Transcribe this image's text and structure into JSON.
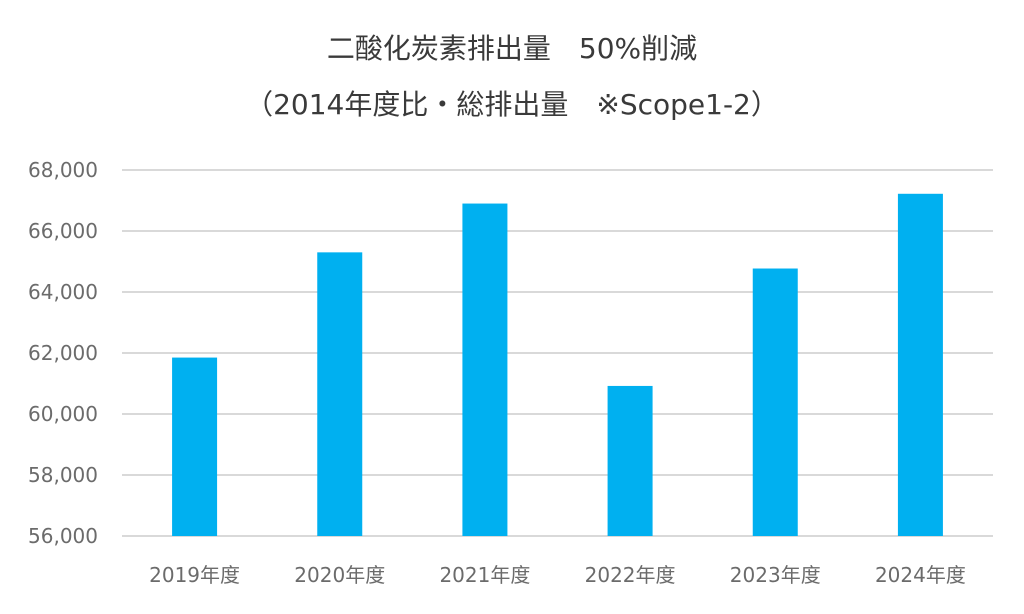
{
  "title_line1": "二酸化炭素排出量　50%削減",
  "title_line2": "（2014年度比・総排出量　※Scope1-2）",
  "chart_data": {
    "type": "bar",
    "categories": [
      "2019年度",
      "2020年度",
      "2021年度",
      "2022年度",
      "2023年度",
      "2024年度"
    ],
    "values": [
      61850,
      65300,
      66900,
      60920,
      64770,
      67220
    ],
    "ylim": [
      56000,
      68000
    ],
    "y_ticks": [
      56000,
      58000,
      60000,
      62000,
      64000,
      66000,
      68000
    ],
    "y_tick_labels": [
      "56,000",
      "58,000",
      "60,000",
      "62,000",
      "64,000",
      "66,000",
      "68,000"
    ],
    "grid": true,
    "bar_color": "#00b0f0",
    "grid_color": "#d9d9d9"
  }
}
